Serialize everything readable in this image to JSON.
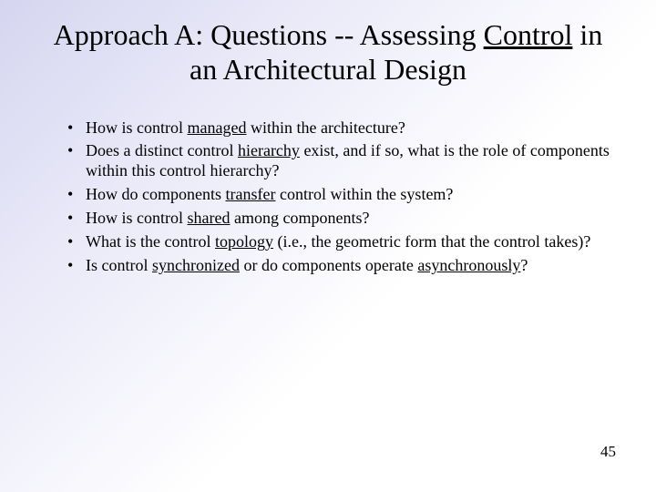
{
  "slide": {
    "title_pre": "Approach A: Questions -- Assessing ",
    "title_underlined": "Control",
    "title_post": " in an Architectural Design",
    "title_fontsize": 32,
    "body_fontsize": 18,
    "pagenum_fontsize": 17,
    "background_gradient": {
      "angle_deg": 135,
      "stops": [
        "#d5d5f0",
        "#e8e8f8",
        "#ffffff"
      ]
    },
    "text_color": "#000000",
    "bullets": [
      {
        "segments": [
          {
            "text": "How is control ",
            "u": false
          },
          {
            "text": "managed",
            "u": true
          },
          {
            "text": " within the architecture?",
            "u": false
          }
        ]
      },
      {
        "segments": [
          {
            "text": "Does a distinct control ",
            "u": false
          },
          {
            "text": "hierarchy",
            "u": true
          },
          {
            "text": " exist, and if so, what is the role of components within this control hierarchy?",
            "u": false
          }
        ]
      },
      {
        "segments": [
          {
            "text": "How do components ",
            "u": false
          },
          {
            "text": "transfer",
            "u": true
          },
          {
            "text": " control within the system?",
            "u": false
          }
        ]
      },
      {
        "segments": [
          {
            "text": "How is control ",
            "u": false
          },
          {
            "text": "shared",
            "u": true
          },
          {
            "text": " among components?",
            "u": false
          }
        ]
      },
      {
        "segments": [
          {
            "text": "What is the control ",
            "u": false
          },
          {
            "text": "topology",
            "u": true
          },
          {
            "text": " (i.e., the geometric form that the control takes)?",
            "u": false
          }
        ]
      },
      {
        "segments": [
          {
            "text": "Is control ",
            "u": false
          },
          {
            "text": "synchronized",
            "u": true
          },
          {
            "text": " or do components operate ",
            "u": false
          },
          {
            "text": "asynchronously",
            "u": true
          },
          {
            "text": "?",
            "u": false
          }
        ]
      }
    ],
    "page_number": "45"
  }
}
